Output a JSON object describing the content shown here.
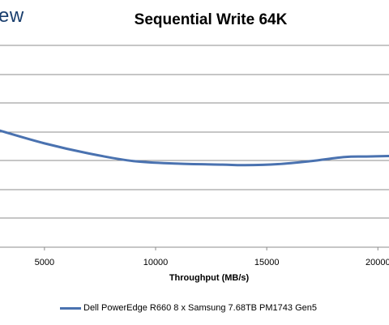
{
  "logo_text": "ew",
  "chart_data": {
    "type": "line",
    "title": "Sequential Write 64K",
    "xlabel": "Throughput (MB/s)",
    "ylabel": "",
    "xlim": [
      3000,
      20500
    ],
    "x_ticks": [
      5000,
      10000,
      15000,
      20000
    ],
    "x_tick_labels": [
      "5000",
      "10000",
      "15000",
      "20000"
    ],
    "grid": true,
    "legend_position": "bottom",
    "series": [
      {
        "name": "Dell PowerEdge R660 8 x Samsung 7.68TB PM1743 Gen5",
        "color": "#4a72b0",
        "x": [
          3000,
          5000,
          7000,
          9000,
          11000,
          13000,
          14000,
          15500,
          17000,
          18500,
          19500,
          20500
        ],
        "y": [
          4.3,
          4.05,
          3.85,
          3.7,
          3.65,
          3.63,
          3.62,
          3.64,
          3.7,
          3.78,
          3.79,
          3.8
        ]
      }
    ]
  }
}
